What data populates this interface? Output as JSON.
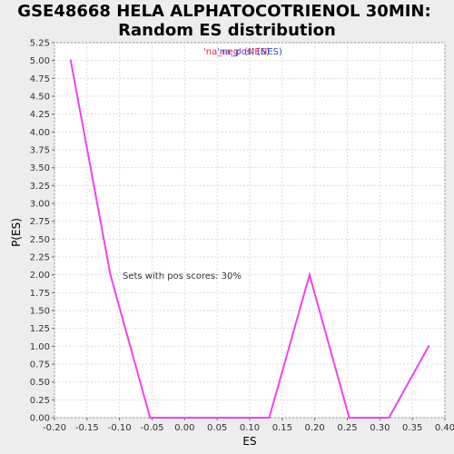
{
  "chart_data": {
    "type": "line",
    "title_line1": "GSE48668 HELA ALPHATOCOTRIENOL 30MIN:",
    "title_line2": "Random ES distribution",
    "xlabel": "ES",
    "ylabel": "P(ES)",
    "xlim": [
      -0.2,
      0.4
    ],
    "ylim": [
      0.0,
      5.25
    ],
    "xticks": [
      "-0.20",
      "-0.15",
      "-0.10",
      "-0.05",
      "0.00",
      "0.05",
      "0.10",
      "0.15",
      "0.20",
      "0.25",
      "0.30",
      "0.35",
      "0.40"
    ],
    "yticks": [
      "0.00",
      "0.25",
      "0.50",
      "0.75",
      "1.00",
      "1.25",
      "1.50",
      "1.75",
      "2.00",
      "2.25",
      "2.50",
      "2.75",
      "3.00",
      "3.25",
      "3.50",
      "3.75",
      "4.00",
      "4.25",
      "4.50",
      "4.75",
      "5.00",
      "5.25"
    ],
    "grid": true,
    "legend": {
      "neg_text": "'na_neg' (NES)",
      "pos_text": "'na_pos' (NES)",
      "neg_color": "#e0213a",
      "pos_color": "#3b3bd6"
    },
    "annotation": "Sets with pos scores: 30%",
    "series": [
      {
        "color": "#ee44ee",
        "x": [
          -0.175,
          -0.114,
          -0.053,
          0.008,
          0.069,
          0.13,
          0.192,
          0.253,
          0.314,
          0.375
        ],
        "y": [
          5.0,
          2.0,
          0.0,
          0.0,
          0.0,
          0.0,
          2.0,
          0.0,
          0.0,
          1.0
        ]
      }
    ]
  }
}
